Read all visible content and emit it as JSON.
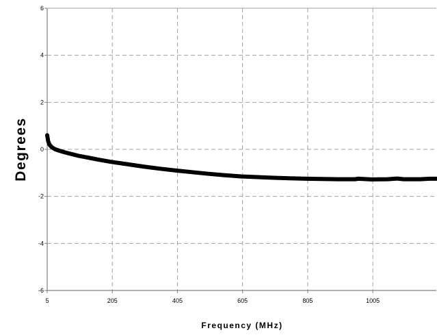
{
  "chart_data": {
    "type": "line",
    "title": "",
    "xlabel": "Frequency (MHz)",
    "ylabel": "Degrees",
    "xlim": [
      5,
      1200
    ],
    "ylim": [
      -6,
      6
    ],
    "x_ticks": [
      5,
      205,
      405,
      605,
      805,
      1005
    ],
    "y_ticks": [
      -6,
      -4,
      -2,
      0,
      2,
      4,
      6
    ],
    "grid": true,
    "legend": "none",
    "line_color": "#000000",
    "series": [
      {
        "x": [
          5,
          8,
          12,
          20,
          30,
          45,
          60,
          80,
          100,
          130,
          160,
          200,
          250,
          300,
          350,
          400,
          450,
          500,
          550,
          600,
          650,
          700,
          750,
          800,
          850,
          900,
          950,
          960,
          1000,
          1050,
          1080,
          1100,
          1150,
          1180,
          1200
        ],
        "y": [
          0.6,
          0.35,
          0.2,
          0.08,
          0.0,
          -0.07,
          -0.13,
          -0.2,
          -0.27,
          -0.35,
          -0.43,
          -0.53,
          -0.63,
          -0.73,
          -0.82,
          -0.9,
          -0.97,
          -1.04,
          -1.1,
          -1.15,
          -1.18,
          -1.21,
          -1.23,
          -1.25,
          -1.26,
          -1.27,
          -1.27,
          -1.25,
          -1.28,
          -1.27,
          -1.24,
          -1.27,
          -1.27,
          -1.25,
          -1.25
        ]
      }
    ]
  }
}
